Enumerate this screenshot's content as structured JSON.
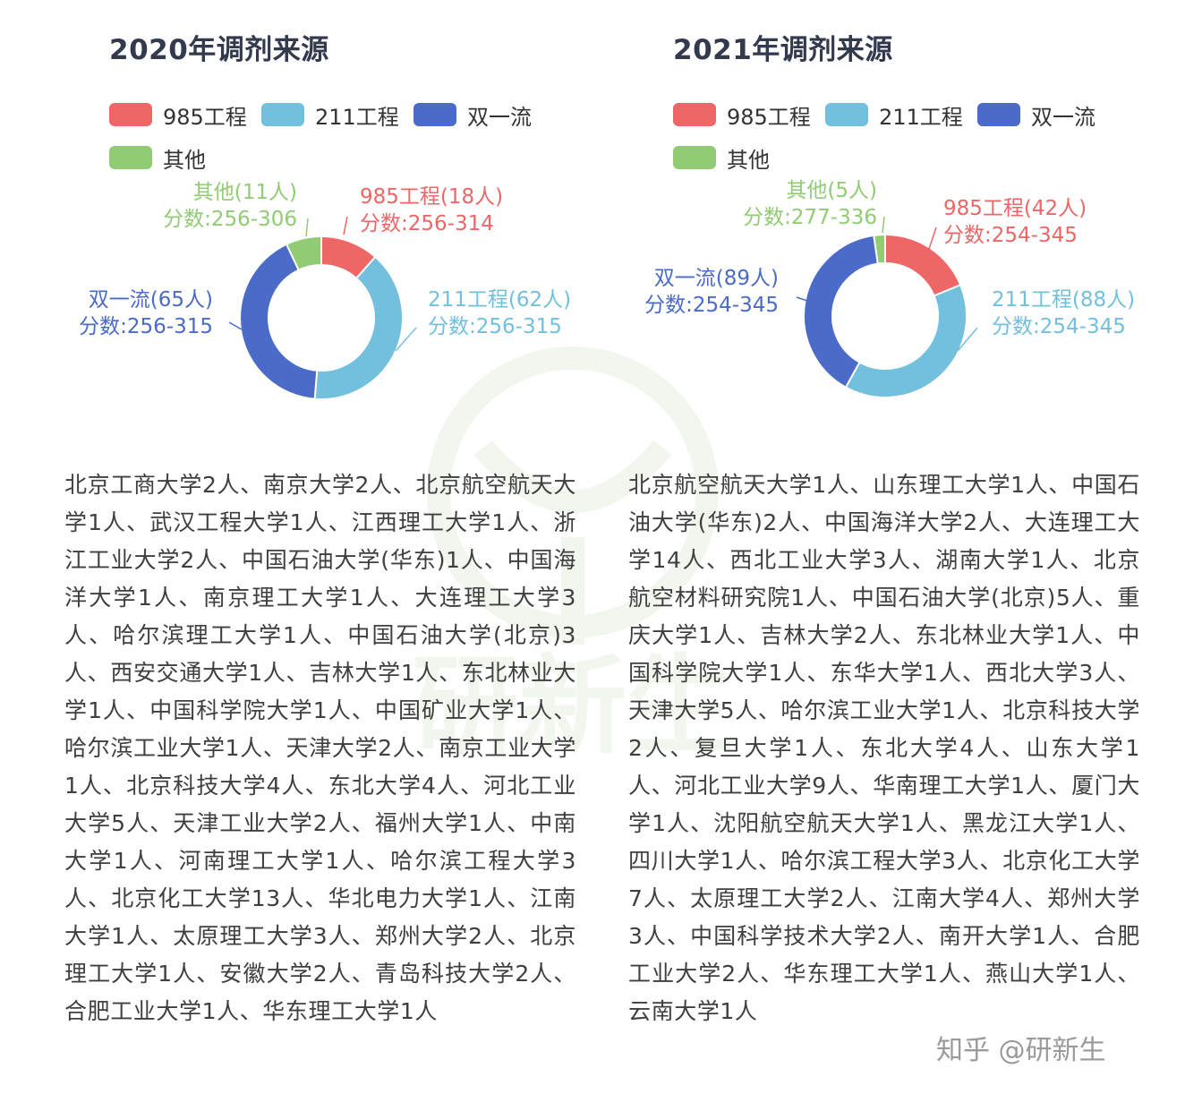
{
  "colors": {
    "985": "#ee6666",
    "211": "#73c0de",
    "double": "#4a6cc8",
    "other": "#91cc75"
  },
  "chart_data": [
    {
      "type": "pie",
      "variant": "donut",
      "title": "2020年调剂来源",
      "legend": [
        "985工程",
        "211工程",
        "双一流",
        "其他"
      ],
      "slices": [
        {
          "name": "985工程",
          "value": 18,
          "label": "985工程(18人)",
          "score": "分数:256-314"
        },
        {
          "name": "211工程",
          "value": 62,
          "label": "211工程(62人)",
          "score": "分数:256-315"
        },
        {
          "name": "双一流",
          "value": 65,
          "label": "双一流(65人)",
          "score": "分数:256-315"
        },
        {
          "name": "其他",
          "value": 11,
          "label": "其他(11人)",
          "score": "分数:256-306"
        }
      ],
      "source_text": "北京工商大学2人、南京大学2人、北京航空航天大学1人、武汉工程大学1人、江西理工大学1人、浙江工业大学2人、中国石油大学(华东)1人、中国海洋大学1人、南京理工大学1人、大连理工大学3人、哈尔滨理工大学1人、中国石油大学(北京)3人、西安交通大学1人、吉林大学1人、东北林业大学1人、中国科学院大学1人、中国矿业大学1人、哈尔滨工业大学1人、天津大学2人、南京工业大学1人、北京科技大学4人、东北大学4人、河北工业大学5人、天津工业大学2人、福州大学1人、中南大学1人、河南理工大学1人、哈尔滨工程大学3人、北京化工大学13人、华北电力大学1人、江南大学1人、太原理工大学3人、郑州大学2人、北京理工大学1人、安徽大学2人、青岛科技大学2人、合肥工业大学1人、华东理工大学1人"
    },
    {
      "type": "pie",
      "variant": "donut",
      "title": "2021年调剂来源",
      "legend": [
        "985工程",
        "211工程",
        "双一流",
        "其他"
      ],
      "slices": [
        {
          "name": "985工程",
          "value": 42,
          "label": "985工程(42人)",
          "score": "分数:254-345"
        },
        {
          "name": "211工程",
          "value": 88,
          "label": "211工程(88人)",
          "score": "分数:254-345"
        },
        {
          "name": "双一流",
          "value": 89,
          "label": "双一流(89人)",
          "score": "分数:254-345"
        },
        {
          "name": "其他",
          "value": 5,
          "label": "其他(5人)",
          "score": "分数:277-336"
        }
      ],
      "source_text": "北京航空航天大学1人、山东理工大学1人、中国石油大学(华东)2人、中国海洋大学2人、大连理工大学14人、西北工业大学3人、湖南大学1人、北京航空材料研究院1人、中国石油大学(北京)5人、重庆大学1人、吉林大学2人、东北林业大学1人、中国科学院大学1人、东华大学1人、西北大学3人、天津大学5人、哈尔滨工业大学1人、北京科技大学2人、复旦大学1人、东北大学4人、山东大学1人、河北工业大学9人、华南理工大学1人、厦门大学1人、沈阳航空航天大学1人、黑龙江大学1人、四川大学1人、哈尔滨工程大学3人、北京化工大学7人、太原理工大学2人、江南大学4人、郑州大学3人、中国科学技术大学2人、南开大学1人、合肥工业大学2人、华东理工大学1人、燕山大学1人、云南大学1人"
    }
  ],
  "footer": {
    "credit": "知乎 @研新生"
  },
  "watermark": {
    "text": "研新生"
  }
}
